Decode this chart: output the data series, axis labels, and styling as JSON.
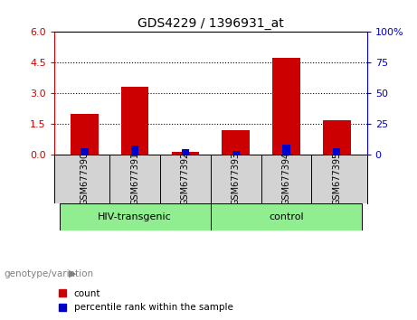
{
  "title": "GDS4229 / 1396931_at",
  "samples": [
    "GSM677390",
    "GSM677391",
    "GSM677392",
    "GSM677393",
    "GSM677394",
    "GSM677395"
  ],
  "red_values": [
    2.0,
    3.3,
    0.12,
    1.2,
    4.75,
    1.65
  ],
  "blue_pct": [
    5,
    7,
    4,
    3,
    8,
    5
  ],
  "groups": [
    {
      "label": "HIV-transgenic",
      "start": 0,
      "end": 2
    },
    {
      "label": "control",
      "start": 3,
      "end": 5
    }
  ],
  "left_ylim": [
    0,
    6
  ],
  "left_yticks": [
    0,
    1.5,
    3,
    4.5,
    6
  ],
  "right_ylim": [
    0,
    100
  ],
  "right_yticks": [
    0,
    25,
    50,
    75,
    100
  ],
  "right_yticklabels": [
    "0",
    "25",
    "50",
    "75",
    "100%"
  ],
  "left_color": "#cc0000",
  "right_color": "#0000cc",
  "group_label_prefix": "genotype/variation",
  "legend_items": [
    "count",
    "percentile rank within the sample"
  ],
  "legend_colors": [
    "#cc0000",
    "#0000cc"
  ],
  "plot_bg": "#ffffff",
  "group_bg": "#90ee90",
  "sample_bg": "#d3d3d3",
  "border_color": "#000000"
}
